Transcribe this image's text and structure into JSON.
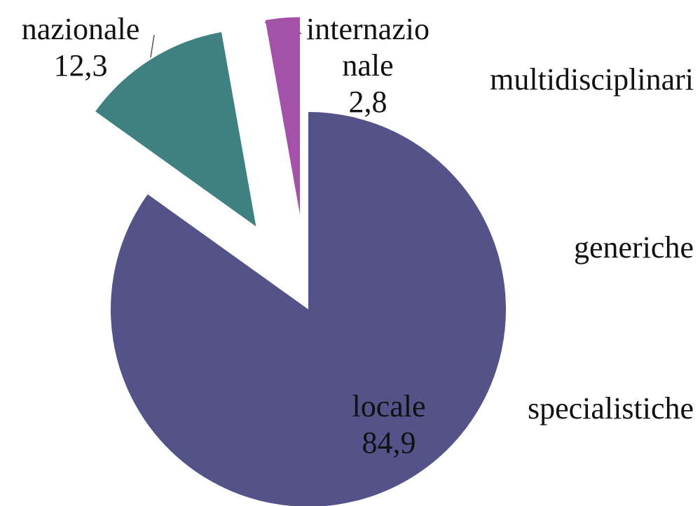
{
  "chart_data": {
    "type": "pie",
    "categories": [
      "locale",
      "nazionale",
      "internazionale"
    ],
    "values": [
      84.9,
      12.3,
      2.8
    ],
    "value_labels": [
      "84,9",
      "12,3",
      "2,8"
    ],
    "colors": [
      "#53538a",
      "#3f8080",
      "#a352a8"
    ],
    "annotations": [
      "multidisciplinari",
      "generiche",
      "specialistiche"
    ]
  }
}
